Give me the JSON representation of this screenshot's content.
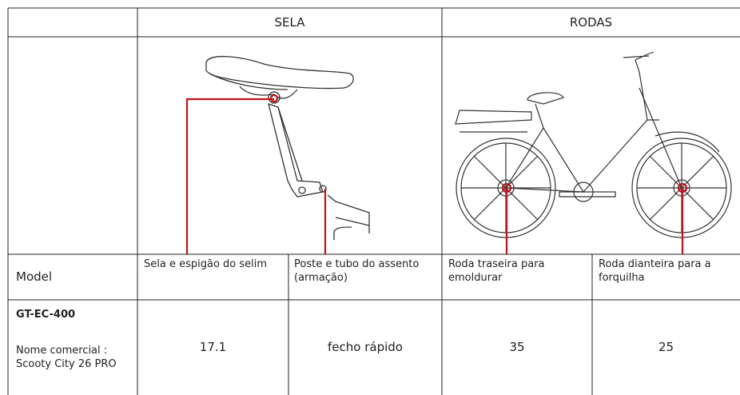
{
  "table": {
    "group_headers": [
      "SELA",
      "RODAS"
    ],
    "columns": [
      "Model",
      "Sela e espigão do selim",
      "Poste e tubo do assento (armação)",
      "Roda traseira para emoldurar",
      "Roda dianteira para a forquilha"
    ],
    "rows": [
      {
        "model": "GT-EC-400",
        "commercial_name": "Nome comercial : Scooty City 26 PRO",
        "values": [
          "17.1",
          "fecho rápido",
          "35",
          "25"
        ]
      }
    ]
  }
}
